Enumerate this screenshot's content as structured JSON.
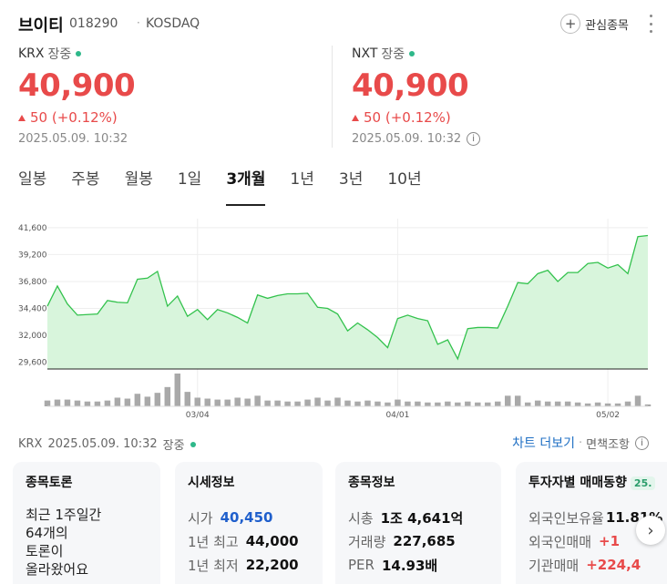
{
  "header": {
    "name": "브이티",
    "code": "018290",
    "dot": "·",
    "market": "KOSDAQ",
    "fav_label": "관심종목"
  },
  "krx": {
    "market": "KRX",
    "state": "장중",
    "price": "40,900",
    "change": "50 (+0.12%)",
    "time": "2025.05.09. 10:32"
  },
  "nxt": {
    "market": "NXT",
    "state": "장중",
    "price": "40,900",
    "change": "50 (+0.12%)",
    "time": "2025.05.09. 10:32"
  },
  "tabs": [
    {
      "label": "일봉"
    },
    {
      "label": "주봉"
    },
    {
      "label": "월봉"
    },
    {
      "label": "1일"
    },
    {
      "label": "3개월"
    },
    {
      "label": "1년"
    },
    {
      "label": "3년"
    },
    {
      "label": "10년"
    }
  ],
  "chart_data": {
    "type": "area",
    "yticks": [
      "41,600",
      "39,200",
      "36,800",
      "34,400",
      "32,000",
      "29,600"
    ],
    "ylim": [
      29000,
      42400
    ],
    "xticks": [
      {
        "label": "03/04",
        "index": 15
      },
      {
        "label": "04/01",
        "index": 35
      },
      {
        "label": "05/02",
        "index": 56
      }
    ],
    "values": [
      34600,
      36400,
      34800,
      33800,
      33850,
      33900,
      35100,
      34950,
      34900,
      37000,
      37100,
      37700,
      34600,
      35500,
      33700,
      34300,
      33400,
      34300,
      34000,
      33600,
      33100,
      35600,
      35300,
      35550,
      35700,
      35700,
      35750,
      34500,
      34400,
      33900,
      32400,
      33100,
      32500,
      31800,
      30900,
      33500,
      33800,
      33500,
      33300,
      31200,
      31600,
      29900,
      32600,
      32700,
      32700,
      32650,
      34600,
      36700,
      36600,
      37500,
      37800,
      36800,
      37600,
      37600,
      38400,
      38500,
      38000,
      38300,
      37500,
      40800,
      40900
    ],
    "volume": [
      6,
      7,
      7,
      6,
      5,
      5,
      6,
      9,
      8,
      13,
      10,
      14,
      20,
      34,
      15,
      9,
      8,
      7,
      7,
      9,
      8,
      11,
      6,
      6,
      5,
      5,
      7,
      9,
      6,
      9,
      6,
      5,
      6,
      5,
      4,
      7,
      5,
      5,
      4,
      4,
      5,
      4,
      5,
      4,
      4,
      5,
      11,
      11,
      4,
      6,
      5,
      5,
      5,
      4,
      3,
      4,
      3,
      3,
      5,
      11,
      2
    ],
    "colors": {
      "line": "#33c24d",
      "fill": "#d8f5dc",
      "volume": "#a9a9a9",
      "grid": "#eeeeee"
    }
  },
  "meta": {
    "market": "KRX",
    "time": "2025.05.09. 10:32",
    "state": "장중",
    "more_chart": "차트 더보기",
    "dot": "·",
    "disclaimer": "면책조항"
  },
  "cards": {
    "forum": {
      "title": "종목토론",
      "line1": "최근 1주일간",
      "line2": "64개의",
      "line3": "토론이",
      "line4": "올라왔어요"
    },
    "quote": {
      "title": "시세정보",
      "rows": [
        {
          "k": "시가",
          "v": "40,450"
        },
        {
          "k": "1년 최고",
          "v": "44,000"
        },
        {
          "k": "1년 최저",
          "v": "22,200"
        }
      ]
    },
    "info": {
      "title": "종목정보",
      "rows": [
        {
          "k": "시총",
          "v": "1조 4,641억"
        },
        {
          "k": "거래량",
          "v": "227,685"
        },
        {
          "k": "PER",
          "v": "14.93배"
        }
      ]
    },
    "investor": {
      "title": "투자자별 매매동향",
      "badge": "25.",
      "rows": [
        {
          "k": "외국인보유율",
          "v": "11.81%"
        },
        {
          "k": "외국인매매",
          "v": "+1"
        },
        {
          "k": "기관매매",
          "v": "+224,4"
        }
      ]
    }
  }
}
